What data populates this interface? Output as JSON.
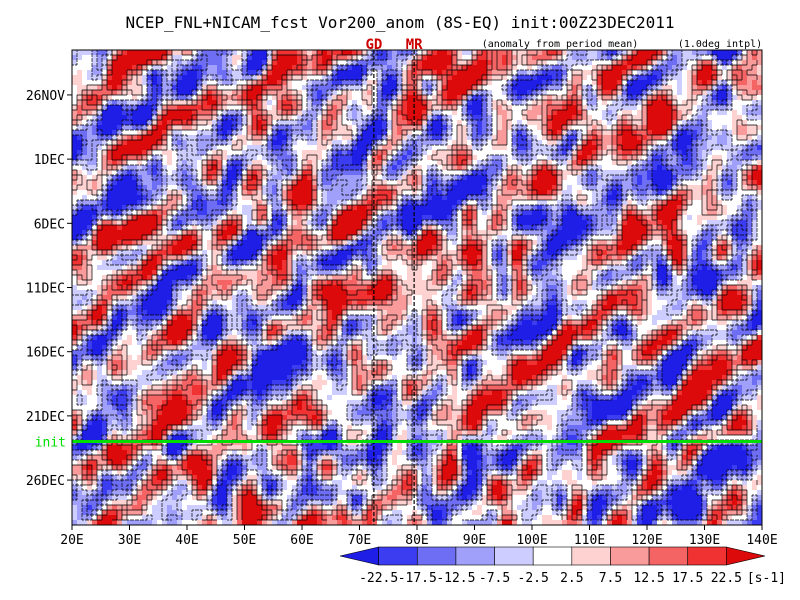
{
  "chart_data": {
    "type": "heatmap",
    "title": "NCEP_FNL+NICAM_fcst Vor200_anom (8S-EQ) init:00Z23DEC2011",
    "subtitle_left": "(anomaly from period mean)",
    "subtitle_right": "(1.0deg intpl)",
    "x_ticks": [
      "20E",
      "30E",
      "40E",
      "50E",
      "60E",
      "70E",
      "80E",
      "90E",
      "100E",
      "110E",
      "120E",
      "130E",
      "140E"
    ],
    "x_values": [
      20,
      30,
      40,
      50,
      60,
      70,
      80,
      90,
      100,
      110,
      120,
      130,
      140
    ],
    "xlim": [
      20,
      140
    ],
    "y_ticks": [
      "26NOV",
      "1DEC",
      "6DEC",
      "11DEC",
      "16DEC",
      "21DEC",
      "26DEC"
    ],
    "y_days": [
      0,
      5,
      10,
      15,
      20,
      25,
      30
    ],
    "ylim_days": [
      -3.5,
      33.5
    ],
    "y_reversed": true,
    "init_label": "init",
    "init_day": 27,
    "init_color": "#00dd00",
    "markers": [
      {
        "label": "GD",
        "x": 72.5,
        "color": "#cc0000"
      },
      {
        "label": "MR",
        "x": 79.5,
        "color": "#cc0000"
      }
    ],
    "colorbar": {
      "levels": [
        "-22.5",
        "-17.5",
        "-12.5",
        "-7.5",
        "-2.5",
        "2.5",
        "7.5",
        "12.5",
        "17.5",
        "22.5"
      ],
      "unit": "[s-1]",
      "colors": [
        "#1e1ee6",
        "#3c3cf0",
        "#6e6ef5",
        "#a0a0fa",
        "#cdcdff",
        "#ffffff",
        "#ffd2d2",
        "#fa9b9b",
        "#f56464",
        "#f03232",
        "#dc0a0a"
      ]
    }
  }
}
